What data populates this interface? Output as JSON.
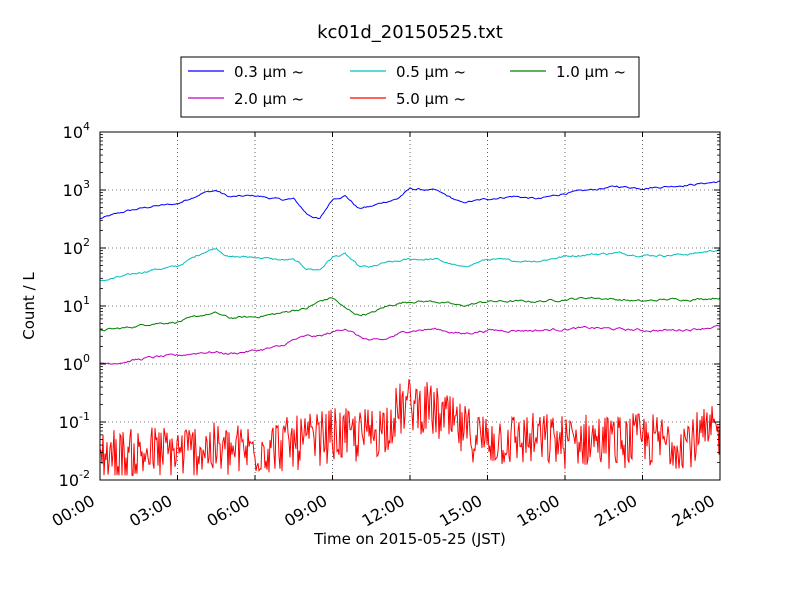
{
  "chart_data": {
    "type": "line",
    "title": "kc01d_20150525.txt",
    "xlabel": "Time on 2015-05-25 (JST)",
    "ylabel": "Count / L",
    "yscale": "log",
    "ylim": [
      0.01,
      10000
    ],
    "xlim": [
      "00:00",
      "24:00"
    ],
    "x_ticks": [
      "00:00",
      "03:00",
      "06:00",
      "09:00",
      "12:00",
      "15:00",
      "18:00",
      "21:00",
      "24:00"
    ],
    "y_ticks": [
      {
        "base": "10",
        "exp": "-2"
      },
      {
        "base": "10",
        "exp": "-1"
      },
      {
        "base": "10",
        "exp": "0"
      },
      {
        "base": "10",
        "exp": "1"
      },
      {
        "base": "10",
        "exp": "2"
      },
      {
        "base": "10",
        "exp": "3"
      },
      {
        "base": "10",
        "exp": "4"
      }
    ],
    "grid": true,
    "legend_placement": "top-center",
    "series": [
      {
        "name": "0.3 μm ~",
        "color": "#0000ff",
        "x": [
          "00:00",
          "01:00",
          "02:00",
          "03:00",
          "04:00",
          "04:30",
          "05:00",
          "06:00",
          "07:00",
          "07:30",
          "08:00",
          "08:30",
          "09:00",
          "09:30",
          "10:00",
          "10:30",
          "11:00",
          "11:30",
          "12:00",
          "13:00",
          "14:00",
          "15:00",
          "16:00",
          "17:00",
          "18:00",
          "19:00",
          "20:00",
          "21:00",
          "22:00",
          "23:00",
          "24:00"
        ],
        "values": [
          320,
          430,
          520,
          580,
          900,
          980,
          760,
          800,
          680,
          700,
          390,
          310,
          700,
          800,
          480,
          520,
          620,
          700,
          1050,
          980,
          600,
          700,
          780,
          700,
          880,
          1000,
          1150,
          1080,
          1150,
          1250,
          1400
        ]
      },
      {
        "name": "0.5 μm ~",
        "color": "#00bfbf",
        "x": [
          "00:00",
          "01:00",
          "02:00",
          "03:00",
          "04:00",
          "04:30",
          "05:00",
          "06:00",
          "07:00",
          "07:30",
          "08:00",
          "08:30",
          "09:00",
          "09:30",
          "10:00",
          "10:30",
          "11:00",
          "11:30",
          "12:00",
          "13:00",
          "14:00",
          "15:00",
          "16:00",
          "17:00",
          "18:00",
          "19:00",
          "20:00",
          "21:00",
          "22:00",
          "23:00",
          "24:00"
        ],
        "values": [
          27,
          33,
          42,
          48,
          85,
          100,
          70,
          70,
          62,
          62,
          44,
          42,
          70,
          78,
          48,
          46,
          55,
          58,
          64,
          64,
          46,
          64,
          60,
          60,
          72,
          78,
          82,
          75,
          75,
          80,
          95
        ]
      },
      {
        "name": "1.0 μm ~",
        "color": "#008000",
        "x": [
          "00:00",
          "01:00",
          "02:00",
          "03:00",
          "04:00",
          "04:30",
          "05:00",
          "06:00",
          "07:00",
          "07:30",
          "08:00",
          "08:30",
          "09:00",
          "09:30",
          "10:00",
          "10:30",
          "11:00",
          "11:30",
          "12:00",
          "13:00",
          "14:00",
          "15:00",
          "16:00",
          "17:00",
          "18:00",
          "19:00",
          "20:00",
          "21:00",
          "22:00",
          "23:00",
          "24:00"
        ],
        "values": [
          3.8,
          4.2,
          5.0,
          5.3,
          7.0,
          7.5,
          6.2,
          6.5,
          7.5,
          8.5,
          9.0,
          12,
          14,
          9.0,
          7.0,
          7.5,
          9.5,
          11,
          12,
          12,
          10,
          12,
          12,
          12,
          13,
          14,
          13,
          12,
          13,
          13,
          14
        ]
      },
      {
        "name": "2.0 μm ~",
        "color": "#bf00bf",
        "x": [
          "00:00",
          "01:00",
          "02:00",
          "03:00",
          "04:00",
          "04:30",
          "05:00",
          "06:00",
          "07:00",
          "07:30",
          "08:00",
          "08:30",
          "09:00",
          "09:30",
          "10:00",
          "10:30",
          "11:00",
          "11:30",
          "12:00",
          "13:00",
          "14:00",
          "15:00",
          "16:00",
          "17:00",
          "18:00",
          "19:00",
          "20:00",
          "21:00",
          "22:00",
          "23:00",
          "24:00"
        ],
        "values": [
          1.0,
          1.1,
          1.3,
          1.4,
          1.6,
          1.6,
          1.5,
          1.7,
          2.0,
          2.6,
          3.0,
          3.0,
          3.5,
          4.2,
          3.0,
          2.5,
          2.6,
          3.2,
          3.8,
          4.0,
          3.3,
          3.8,
          3.8,
          3.8,
          4.0,
          4.2,
          4.0,
          3.8,
          3.8,
          4.0,
          4.5
        ]
      },
      {
        "name": "5.0 μm ~",
        "color": "#ff0000",
        "x": [
          "00:00",
          "01:00",
          "02:00",
          "03:00",
          "04:00",
          "05:00",
          "06:00",
          "07:00",
          "08:00",
          "09:00",
          "10:00",
          "11:00",
          "11:30",
          "12:00",
          "12:30",
          "13:00",
          "14:00",
          "15:00",
          "16:00",
          "17:00",
          "18:00",
          "19:00",
          "20:00",
          "21:00",
          "22:00",
          "23:00",
          "24:00"
        ],
        "values": [
          0.03,
          0.025,
          0.03,
          0.03,
          0.035,
          0.03,
          0.035,
          0.04,
          0.045,
          0.06,
          0.055,
          0.08,
          0.15,
          0.2,
          0.18,
          0.14,
          0.07,
          0.05,
          0.05,
          0.05,
          0.045,
          0.05,
          0.045,
          0.05,
          0.045,
          0.05,
          0.07
        ]
      }
    ]
  }
}
